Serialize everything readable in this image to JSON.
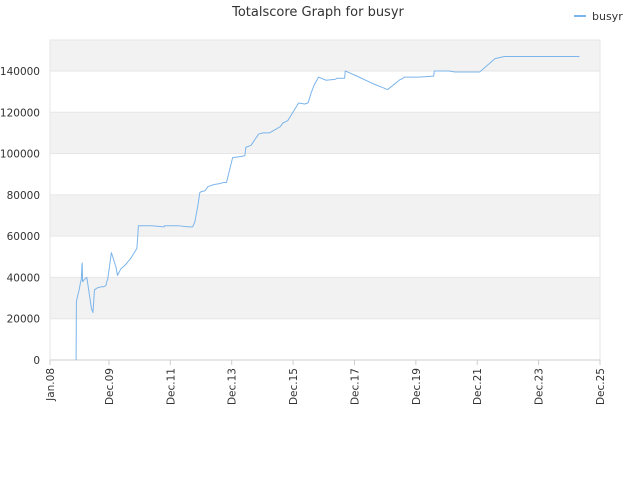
{
  "chart_data": {
    "type": "line",
    "title": "Totalscore Graph for busyr",
    "xlabel": "",
    "ylabel": "",
    "x_ticks": [
      "Jan.08",
      "Dec.09",
      "Dec.11",
      "Dec.13",
      "Dec.15",
      "Dec.17",
      "Dec.19",
      "Dec.21",
      "Dec.23",
      "Dec.25"
    ],
    "x_tick_values": [
      2008.0,
      2009.92,
      2011.92,
      2013.92,
      2015.92,
      2017.92,
      2019.92,
      2021.92,
      2023.92,
      2025.92
    ],
    "xlim": [
      2008.0,
      2025.92
    ],
    "ylim": [
      0,
      155000
    ],
    "y_ticks": [
      0,
      20000,
      40000,
      60000,
      80000,
      100000,
      120000,
      140000
    ],
    "grid": true,
    "alternating_bands": true,
    "legend_position": "top-right",
    "colors": {
      "series": "#7cb5ec",
      "band": "#f2f2f2",
      "grid": "#e6e6e6",
      "axis": "#cccccc"
    },
    "series": [
      {
        "name": "busyr",
        "x": [
          2008.85,
          2008.86,
          2008.87,
          2008.9,
          2008.95,
          2009.0,
          2009.02,
          2009.04,
          2009.05,
          2009.06,
          2009.07,
          2009.12,
          2009.2,
          2009.35,
          2009.4,
          2009.45,
          2009.55,
          2009.68,
          2009.75,
          2009.82,
          2009.85,
          2009.88,
          2010.0,
          2010.15,
          2010.2,
          2010.3,
          2010.45,
          2010.62,
          2010.83,
          2010.86,
          2010.88,
          2010.95,
          2011.3,
          2011.72,
          2011.73,
          2012.2,
          2012.52,
          2012.65,
          2012.72,
          2012.82,
          2012.88,
          2012.92,
          2013.05,
          2013.15,
          2013.35,
          2013.55,
          2013.65,
          2013.75,
          2013.95,
          2014.2,
          2014.22,
          2014.35,
          2014.38,
          2014.55,
          2014.8,
          2014.95,
          2015.15,
          2015.5,
          2015.55,
          2015.6,
          2015.62,
          2015.75,
          2016.1,
          2016.3,
          2016.4,
          2016.42,
          2016.5,
          2016.6,
          2016.75,
          2017.0,
          2017.3,
          2017.35,
          2017.6,
          2017.62,
          2018.0,
          2018.5,
          2019.0,
          2019.42,
          2019.45,
          2019.5,
          2019.55,
          2020.0,
          2020.5,
          2020.52,
          2020.6,
          2020.8,
          2021.0,
          2021.2,
          2021.4,
          2021.7,
          2022.0,
          2022.5,
          2022.8,
          2023.0,
          2023.5,
          2024.0,
          2024.5,
          2025.25
        ],
        "values": [
          0,
          28000,
          29000,
          31000,
          34000,
          38000,
          39000,
          46000,
          47000,
          38000,
          38000,
          39000,
          40000,
          25000,
          23000,
          34000,
          35000,
          35500,
          35500,
          36000,
          38000,
          39000,
          52000,
          45000,
          41000,
          44000,
          46000,
          49000,
          54000,
          60000,
          65000,
          65000,
          65000,
          64500,
          65000,
          65000,
          64500,
          64500,
          67000,
          75000,
          81000,
          81500,
          82000,
          84000,
          85000,
          85500,
          86000,
          86000,
          98000,
          98500,
          98500,
          99000,
          103000,
          104000,
          109500,
          110000,
          110000,
          113000,
          114000,
          115000,
          115000,
          116000,
          124500,
          124000,
          124500,
          125000,
          129000,
          133000,
          137000,
          135500,
          136000,
          136500,
          136500,
          140000,
          137500,
          134000,
          131000,
          136000,
          136000,
          136500,
          137000,
          137000,
          137500,
          140000,
          140000,
          140000,
          140000,
          139500,
          139500,
          139500,
          139500,
          146000,
          147000,
          147000,
          147000,
          147000,
          147000,
          147000
        ]
      }
    ]
  }
}
